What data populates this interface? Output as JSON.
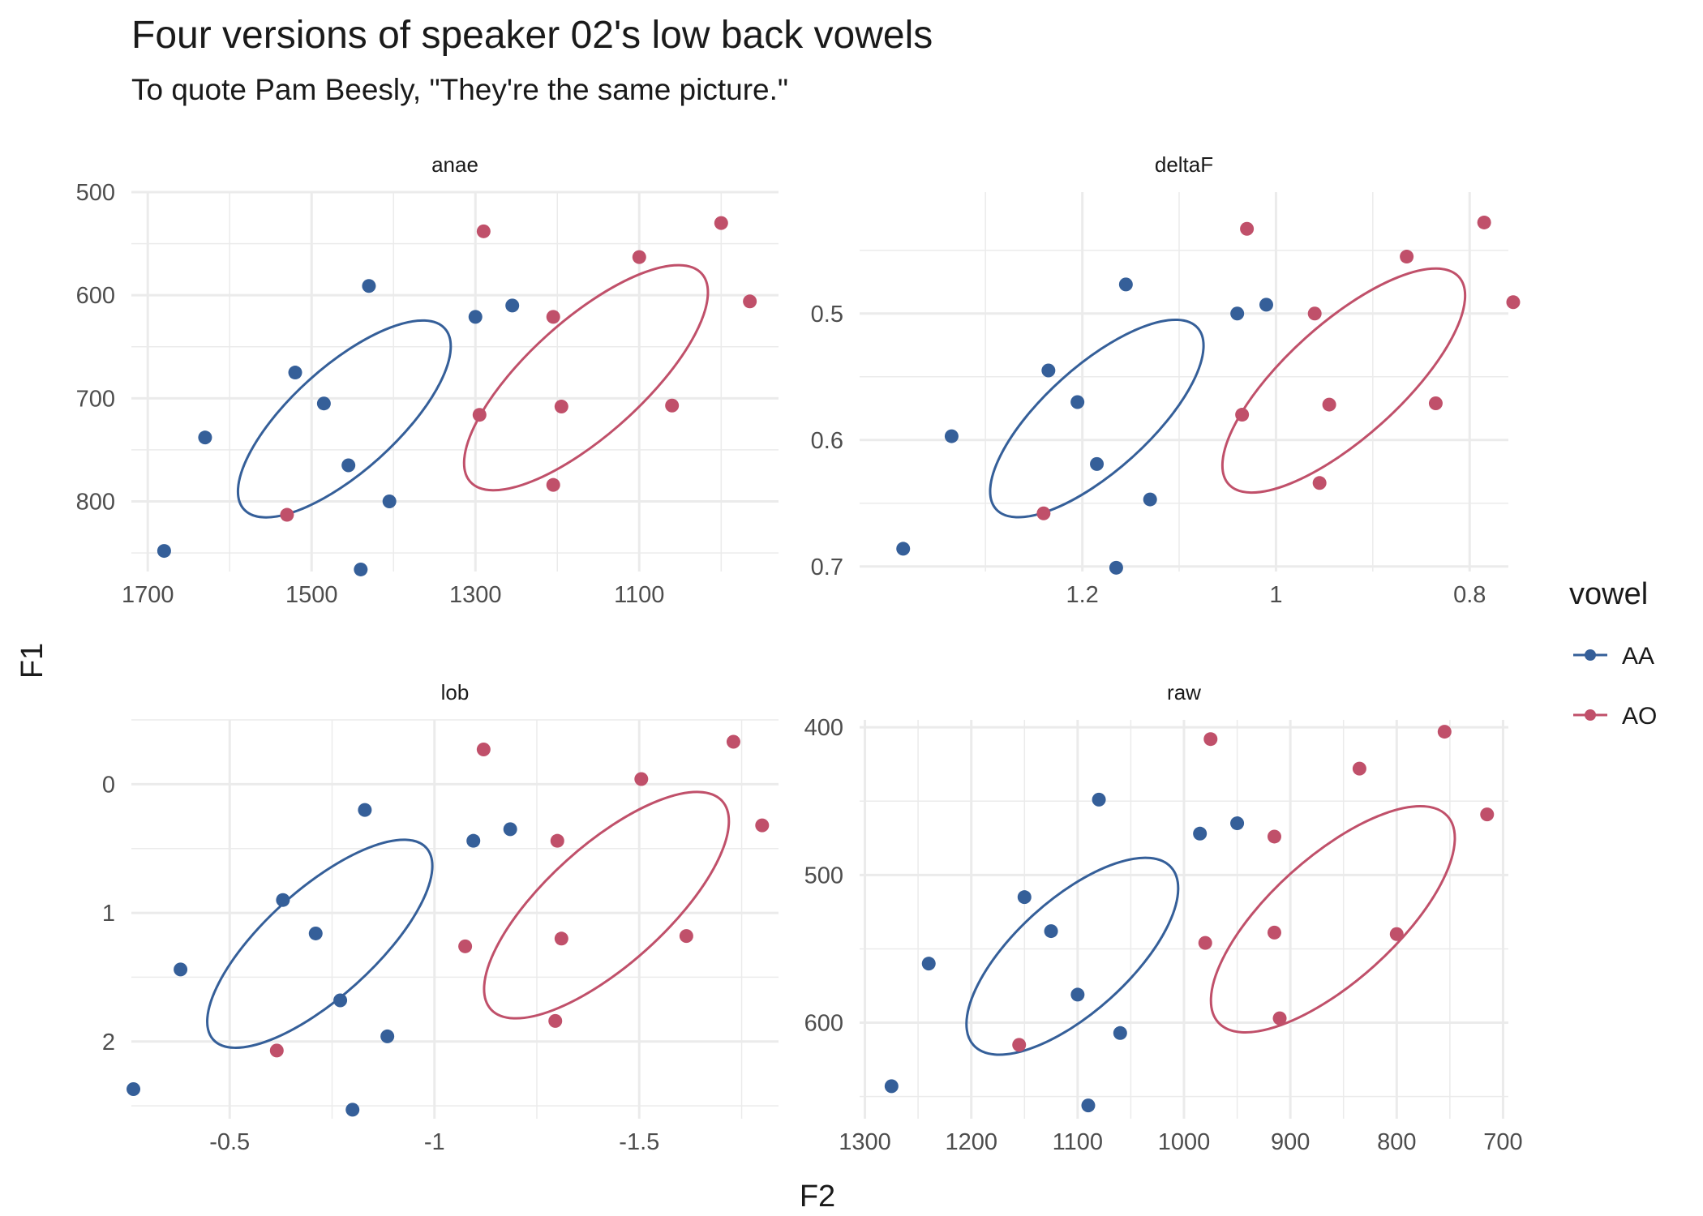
{
  "title": "Four versions of speaker 02's low back vowels",
  "subtitle": "To quote Pam Beesly, \"They're the same picture.\"",
  "colors": {
    "AA": "#355f99",
    "AO": "#c0506a",
    "grid": "#ebebeb"
  },
  "chart_data": {
    "type": "scatter",
    "xlabel": "F2",
    "ylabel": "F1",
    "legend": {
      "title": "vowel",
      "position": "right",
      "entries": [
        "AA",
        "AO"
      ]
    },
    "x_reversed": true,
    "y_reversed": true,
    "grid": true,
    "facets": [
      {
        "name": "anae",
        "xlim": [
          1720,
          930
        ],
        "ylim": [
          500,
          868
        ],
        "x_ticks": [
          1700,
          1500,
          1300,
          1100
        ],
        "y_ticks": [
          500,
          600,
          700,
          800
        ],
        "series": [
          {
            "name": "AA",
            "x": [
              1680,
              1630,
              1520,
              1485,
              1455,
              1430,
              1405,
              1440,
              1300,
              1255
            ],
            "y": [
              848,
              738,
              675,
              705,
              765,
              591,
              800,
              866,
              621,
              610
            ]
          },
          {
            "name": "AO",
            "x": [
              1530,
              1295,
              1290,
              1205,
              1205,
              1195,
              1100,
              1060,
              1000,
              965
            ],
            "y": [
              813,
              716,
              538,
              621,
              784,
              708,
              563,
              707,
              530,
              606
            ]
          }
        ],
        "ellipses": [
          {
            "name": "AA",
            "cx": 1460,
            "cy": 720,
            "rx": 165,
            "ry": 82,
            "rotate": 1
          },
          {
            "name": "AO",
            "cx": 1165,
            "cy": 680,
            "rx": 190,
            "ry": 90,
            "rotate": 1
          }
        ]
      },
      {
        "name": "deltaF",
        "xlim": [
          1.43,
          0.76
        ],
        "ylim": [
          0.404,
          0.704
        ],
        "x_ticks": [
          1.2,
          1.0,
          0.8
        ],
        "y_ticks": [
          0.5,
          0.6,
          0.7
        ],
        "series": [
          {
            "name": "AA",
            "x": [
              1.385,
              1.335,
              1.235,
              1.205,
              1.185,
              1.155,
              1.13,
              1.165,
              1.04,
              1.01
            ],
            "y": [
              0.686,
              0.597,
              0.545,
              0.57,
              0.619,
              0.477,
              0.647,
              0.701,
              0.5,
              0.493
            ]
          },
          {
            "name": "AO",
            "x": [
              1.24,
              1.035,
              1.03,
              0.96,
              0.955,
              0.945,
              0.865,
              0.835,
              0.785,
              0.755
            ],
            "y": [
              0.658,
              0.58,
              0.433,
              0.5,
              0.634,
              0.572,
              0.455,
              0.571,
              0.428,
              0.491
            ]
          }
        ],
        "ellipses": [
          {
            "name": "AA",
            "cx": 1.185,
            "cy": 0.583,
            "rx": 0.14,
            "ry": 0.067,
            "rotate": 1
          },
          {
            "name": "AO",
            "cx": 0.93,
            "cy": 0.553,
            "rx": 0.16,
            "ry": 0.073,
            "rotate": 1
          }
        ]
      },
      {
        "name": "lob",
        "xlim": [
          -0.26,
          -1.84
        ],
        "ylim": [
          -0.5,
          2.6
        ],
        "x_ticks": [
          -0.5,
          -1.0,
          -1.5
        ],
        "y_ticks": [
          0,
          1,
          2
        ],
        "series": [
          {
            "name": "AA",
            "x": [
              -0.265,
              -0.38,
              -0.63,
              -0.71,
              -0.77,
              -0.83,
              -0.885,
              -0.8,
              -1.095,
              -1.185
            ],
            "y": [
              2.37,
              1.44,
              0.9,
              1.16,
              1.68,
              0.2,
              1.96,
              2.53,
              0.44,
              0.35
            ]
          },
          {
            "name": "AO",
            "x": [
              -0.615,
              -1.075,
              -1.12,
              -1.3,
              -1.295,
              -1.31,
              -1.505,
              -1.615,
              -1.73,
              -1.8
            ],
            "y": [
              2.07,
              1.26,
              -0.27,
              0.44,
              1.84,
              1.2,
              -0.04,
              1.18,
              -0.33,
              0.32
            ]
          }
        ],
        "ellipses": [
          {
            "name": "AA",
            "cx": -0.72,
            "cy": 1.24,
            "rx": 0.35,
            "ry": 0.68,
            "rotate": 0
          },
          {
            "name": "AO",
            "cx": -1.42,
            "cy": 0.94,
            "rx": 0.38,
            "ry": 0.75,
            "rotate": 0
          }
        ]
      },
      {
        "name": "raw",
        "xlim": [
          1305,
          695
        ],
        "ylim": [
          395,
          665
        ],
        "x_ticks": [
          1300,
          1200,
          1100,
          1000,
          900,
          800,
          700
        ],
        "y_ticks": [
          400,
          500,
          600
        ],
        "series": [
          {
            "name": "AA",
            "x": [
              1275,
              1240,
              1150,
              1125,
              1100,
              1080,
              1060,
              1090,
              985,
              950
            ],
            "y": [
              643,
              560,
              515,
              538,
              581,
              449,
              607,
              656,
              472,
              465
            ]
          },
          {
            "name": "AO",
            "x": [
              1155,
              980,
              975,
              915,
              910,
              915,
              835,
              800,
              755,
              715
            ],
            "y": [
              615,
              546,
              408,
              474,
              597,
              539,
              428,
              540,
              403,
              459
            ]
          }
        ],
        "ellipses": [
          {
            "name": "AA",
            "cx": 1105,
            "cy": 555,
            "rx": 125,
            "ry": 62,
            "rotate": 1
          },
          {
            "name": "AO",
            "cx": 860,
            "cy": 530,
            "rx": 145,
            "ry": 68,
            "rotate": 1
          }
        ]
      }
    ]
  }
}
